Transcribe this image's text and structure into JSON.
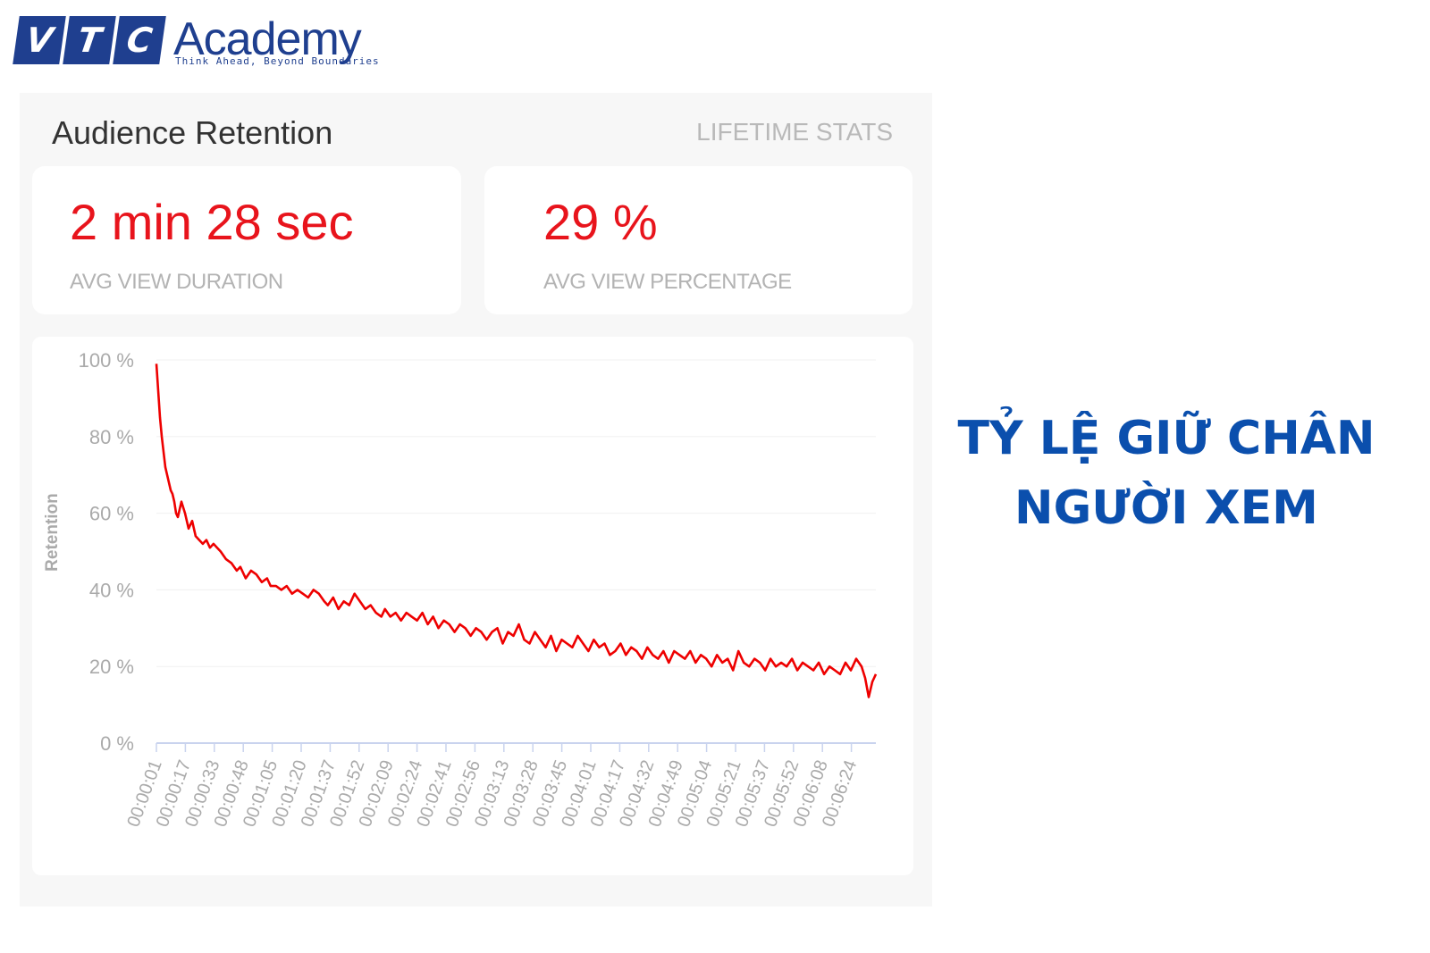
{
  "brand": {
    "letters": [
      "V",
      "T",
      "C"
    ],
    "name": "Academy",
    "tagline": "Think Ahead, Beyond Boundaries",
    "color": "#1f3f8f"
  },
  "panel": {
    "title": "Audience Retention",
    "link": "LIFETIME STATS",
    "stats": [
      {
        "value": "2 min 28 sec",
        "label": "AVG VIEW DURATION"
      },
      {
        "value": "29 %",
        "label": "AVG VIEW PERCENTAGE"
      }
    ],
    "accent_color": "#e8141c"
  },
  "headline": {
    "line1": "TỶ LỆ GIỮ CHÂN",
    "line2": "NGƯỜI XEM",
    "color": "#0b4fad"
  },
  "chart_data": {
    "type": "line",
    "title": "Audience Retention",
    "xlabel": "",
    "ylabel": "Retention",
    "ylim": [
      0,
      100
    ],
    "yticks": [
      "0 %",
      "20 %",
      "40 %",
      "60 %",
      "80 %",
      "100 %"
    ],
    "grid": true,
    "legend": "none",
    "line_color": "#ee0000",
    "x_tick_labels": [
      "00:00:01",
      "00:00:17",
      "00:00:33",
      "00:00:48",
      "00:01:05",
      "00:01:20",
      "00:01:37",
      "00:01:52",
      "00:02:09",
      "00:02:24",
      "00:02:41",
      "00:02:56",
      "00:03:13",
      "00:03:28",
      "00:03:45",
      "00:04:01",
      "00:04:17",
      "00:04:32",
      "00:04:49",
      "00:05:04",
      "00:05:21",
      "00:05:37",
      "00:05:52",
      "00:06:08",
      "00:06:24"
    ],
    "series": [
      {
        "name": "Retention",
        "x_seconds": [
          1,
          2,
          3,
          4,
          5,
          6,
          7,
          8,
          9,
          10,
          11,
          12,
          13,
          14,
          15,
          17,
          19,
          21,
          23,
          25,
          27,
          29,
          31,
          33,
          35,
          37,
          40,
          43,
          46,
          48,
          51,
          54,
          57,
          60,
          63,
          65,
          68,
          71,
          74,
          77,
          80,
          83,
          86,
          89,
          92,
          95,
          97,
          100,
          103,
          106,
          109,
          112,
          115,
          118,
          121,
          124,
          127,
          129,
          132,
          135,
          138,
          141,
          144,
          147,
          150,
          153,
          156,
          159,
          162,
          165,
          168,
          171,
          174,
          177,
          180,
          183,
          186,
          189,
          192,
          195,
          198,
          201,
          204,
          207,
          210,
          213,
          216,
          219,
          222,
          225,
          228,
          231,
          234,
          237,
          240,
          243,
          246,
          249,
          252,
          255,
          258,
          261,
          264,
          267,
          270,
          273,
          276,
          279,
          282,
          285,
          288,
          291,
          294,
          297,
          300,
          303,
          306,
          309,
          312,
          315,
          318,
          321,
          324,
          327,
          330,
          333,
          336,
          339,
          342,
          345,
          348,
          351,
          354,
          357,
          360,
          363,
          366,
          369,
          372,
          375,
          378,
          381,
          384,
          387,
          390,
          393,
          396,
          398,
          400,
          402,
          404
        ],
        "values": [
          99,
          92,
          85,
          80,
          76,
          72,
          70,
          68,
          66,
          65,
          63,
          60,
          59,
          61,
          63,
          60,
          56,
          58,
          54,
          53,
          52,
          53,
          51,
          52,
          51,
          50,
          48,
          47,
          45,
          46,
          43,
          45,
          44,
          42,
          43,
          41,
          41,
          40,
          41,
          39,
          40,
          39,
          38,
          40,
          39,
          37,
          36,
          38,
          35,
          37,
          36,
          39,
          37,
          35,
          36,
          34,
          33,
          35,
          33,
          34,
          32,
          34,
          33,
          32,
          34,
          31,
          33,
          30,
          32,
          31,
          29,
          31,
          30,
          28,
          30,
          29,
          27,
          29,
          30,
          26,
          29,
          28,
          31,
          27,
          26,
          29,
          27,
          25,
          28,
          24,
          27,
          26,
          25,
          28,
          26,
          24,
          27,
          25,
          26,
          23,
          24,
          26,
          23,
          25,
          24,
          22,
          25,
          23,
          22,
          24,
          21,
          24,
          23,
          22,
          24,
          21,
          23,
          22,
          20,
          23,
          21,
          22,
          19,
          24,
          21,
          20,
          22,
          21,
          19,
          22,
          20,
          21,
          20,
          22,
          19,
          21,
          20,
          19,
          21,
          18,
          20,
          19,
          18,
          21,
          19,
          22,
          20,
          17,
          12,
          16,
          18
        ]
      }
    ]
  }
}
